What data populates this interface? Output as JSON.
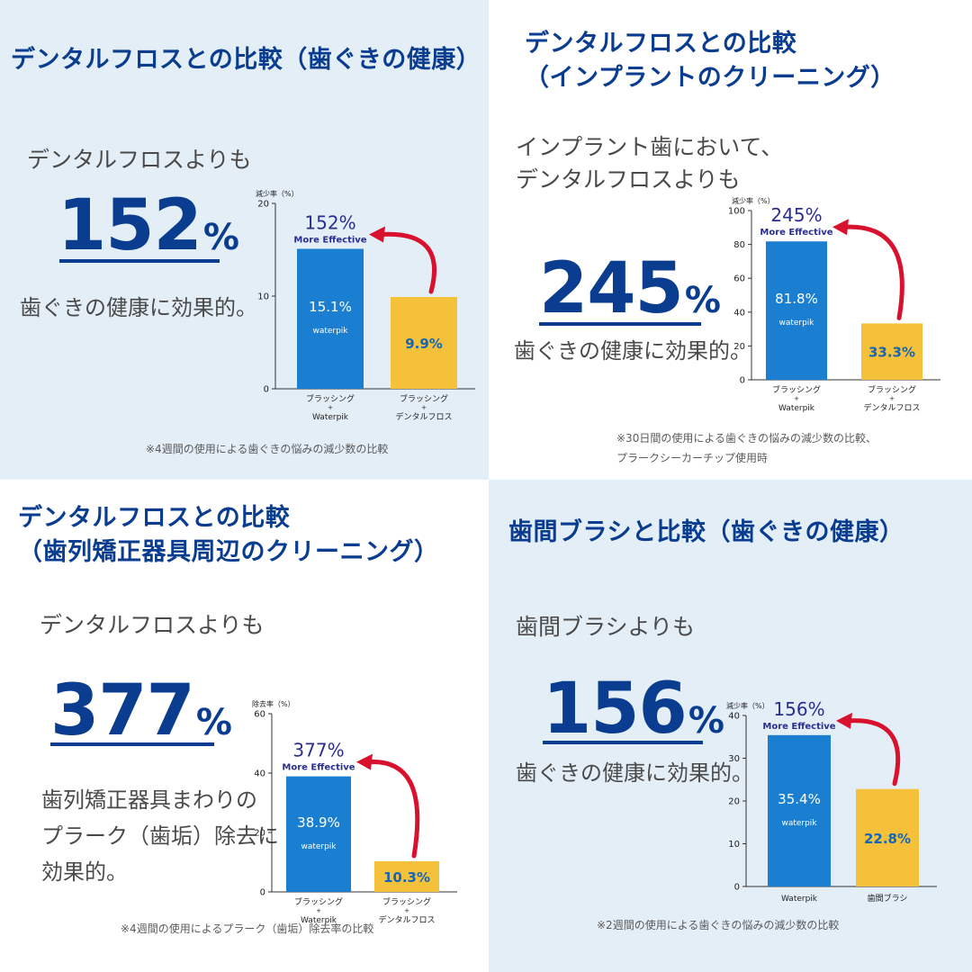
{
  "colors": {
    "navy": "#0a3d8f",
    "blue_bar": "#1b7fd1",
    "yellow_bar": "#f5c13b",
    "arrow": "#d8112f",
    "panel_light": "#e3eef7"
  },
  "panels": [
    {
      "title_lines": [
        "デンタルフロスとの比較（歯ぐきの健康）"
      ],
      "sub_lines": [
        "デンタルフロスよりも"
      ],
      "big_num": "152",
      "big_pct": "%",
      "desc_lines": [
        "歯ぐきの健康に効果的。"
      ],
      "note_lines": [
        "※4週間の使用による歯ぐきの悩みの減少数の比較"
      ]
    },
    {
      "title_lines": [
        "デンタルフロスとの比較",
        "（インプラントのクリーニング）"
      ],
      "sub_lines": [
        "インプラント歯において、",
        "デンタルフロスよりも"
      ],
      "big_num": "245",
      "big_pct": "%",
      "desc_lines": [
        "歯ぐきの健康に効果的。"
      ],
      "note_lines": [
        "※30日間の使用による歯ぐきの悩みの減少数の比較、",
        "プラークシーカーチップ使用時"
      ]
    },
    {
      "title_lines": [
        "デンタルフロスとの比較",
        "（歯列矯正器具周辺のクリーニング）"
      ],
      "sub_lines": [
        "デンタルフロスよりも"
      ],
      "big_num": "377",
      "big_pct": "%",
      "desc_lines": [
        "歯列矯正器具まわりの",
        "プラーク（歯垢）除去に",
        "効果的。"
      ],
      "note_lines": [
        "※4週間の使用によるプラーク（歯垢）除去率の比較"
      ]
    },
    {
      "title_lines": [
        "歯間ブラシと比較（歯ぐきの健康）"
      ],
      "sub_lines": [
        "歯間ブラシよりも"
      ],
      "big_num": "156",
      "big_pct": "%",
      "desc_lines": [
        "歯ぐきの健康に効果的。"
      ],
      "note_lines": [
        "※2週間の使用による歯ぐきの悩みの減少数の比較"
      ]
    }
  ],
  "chart_data": [
    {
      "type": "bar",
      "ylabel": "減少率（%）",
      "ylim": [
        0,
        20
      ],
      "yticks": [
        0,
        10,
        20
      ],
      "grid": false,
      "categories": [
        [
          "ブラッシング",
          "+",
          "Waterpik"
        ],
        [
          "ブラッシング",
          "+",
          "デンタルフロス"
        ]
      ],
      "values": [
        15.1,
        9.9
      ],
      "value_labels": [
        "15.1%",
        "9.9%"
      ],
      "brand_label": "waterpik",
      "highlight_pct": "152%",
      "highlight_text": "More Effective"
    },
    {
      "type": "bar",
      "ylabel": "減少率（%）",
      "ylim": [
        0,
        100
      ],
      "yticks": [
        0,
        20,
        40,
        60,
        80,
        100
      ],
      "grid": false,
      "categories": [
        [
          "ブラッシング",
          "+",
          "Waterpik"
        ],
        [
          "ブラッシング",
          "+",
          "デンタルフロス"
        ]
      ],
      "values": [
        81.8,
        33.3
      ],
      "value_labels": [
        "81.8%",
        "33.3%"
      ],
      "brand_label": "waterpik",
      "highlight_pct": "245%",
      "highlight_text": "More Effective"
    },
    {
      "type": "bar",
      "ylabel": "除去率（%）",
      "ylim": [
        0,
        60
      ],
      "yticks": [
        0,
        20,
        40,
        60
      ],
      "grid": false,
      "categories": [
        [
          "ブラッシング",
          "+",
          "Waterpik"
        ],
        [
          "ブラッシング",
          "+",
          "デンタルフロス"
        ]
      ],
      "values": [
        38.9,
        10.3
      ],
      "value_labels": [
        "38.9%",
        "10.3%"
      ],
      "brand_label": "waterpik",
      "highlight_pct": "377%",
      "highlight_text": "More Effective"
    },
    {
      "type": "bar",
      "ylabel": "減少率（%）",
      "ylim": [
        0,
        40
      ],
      "yticks": [
        0,
        10,
        20,
        30,
        40
      ],
      "grid": false,
      "categories": [
        [
          "Waterpik"
        ],
        [
          "歯間ブラシ"
        ]
      ],
      "values": [
        35.4,
        22.8
      ],
      "value_labels": [
        "35.4%",
        "22.8%"
      ],
      "brand_label": "waterpik",
      "highlight_pct": "156%",
      "highlight_text": "More Effective"
    }
  ]
}
